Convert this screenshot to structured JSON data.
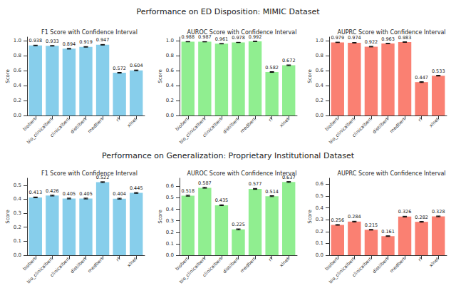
{
  "titles": [
    "Performance on ED Disposition: MIMIC Dataset",
    "Performance on Generalization: Proprietary Institutional Dataset"
  ],
  "chart_data": [
    {
      "type": "bar",
      "title": "F1 Score with Confidence Interval",
      "y_label": "Score",
      "categories": [
        "biobert",
        "bio_clinicalbert",
        "clinicalbert",
        "distilbert",
        "medbert",
        "rf",
        "xlnet"
      ],
      "values": [
        0.938,
        0.933,
        0.894,
        0.919,
        0.947,
        0.572,
        0.604
      ],
      "errors": [
        0.004,
        0.004,
        0.005,
        0.004,
        0.004,
        0.005,
        0.005
      ],
      "color": "#87ceeb",
      "ylim": [
        0,
        1.05
      ],
      "yticks": [
        {
          "value": 0,
          "label": "0.0"
        },
        0.2,
        0.4,
        0.6,
        0.8,
        {
          "value": 1,
          "label": "1.0"
        }
      ],
      "data_labels": true,
      "grid": false
    },
    {
      "type": "bar",
      "title": "AUROC Score with Confidence Interval",
      "y_label": "Score",
      "categories": [
        "biobert",
        "bio_clinicalbert",
        "clinicalbert",
        "distilbert",
        "medbert",
        "rf",
        "xlnet"
      ],
      "values": [
        0.988,
        0.987,
        0.961,
        0.978,
        0.992,
        0.582,
        0.672
      ],
      "errors": [
        0.002,
        0.002,
        0.003,
        0.002,
        0.002,
        0.005,
        0.005
      ],
      "color": "#90ee90",
      "ylim": [
        0,
        1.05
      ],
      "yticks": [
        {
          "value": 0,
          "label": "0.0"
        },
        0.2,
        0.4,
        0.6,
        0.8,
        {
          "value": 1,
          "label": "1.0"
        }
      ],
      "data_labels": true,
      "grid": false
    },
    {
      "type": "bar",
      "title": "AUPRC Score with Confidence Interval",
      "y_label": "Score",
      "categories": [
        "biobert",
        "bio_clinicalbert",
        "clinicalbert",
        "distilbert",
        "medbert",
        "rf",
        "xlnet"
      ],
      "values": [
        0.979,
        0.974,
        0.922,
        0.963,
        0.983,
        0.447,
        0.533
      ],
      "errors": [
        0.003,
        0.003,
        0.004,
        0.003,
        0.003,
        0.005,
        0.005
      ],
      "color": "#fa8072",
      "ylim": [
        0,
        1.05
      ],
      "yticks": [
        {
          "value": 0,
          "label": "0.0"
        },
        0.2,
        0.4,
        0.6,
        0.8,
        {
          "value": 1,
          "label": "1.0"
        }
      ],
      "data_labels": true,
      "grid": false
    },
    {
      "type": "bar",
      "title": "F1 Score with Confidence Interval",
      "y_label": "Score",
      "categories": [
        "biobert",
        "bio_clinicalbert",
        "clinicalbert",
        "distilbert",
        "medbert",
        "rf",
        "xlnet"
      ],
      "values": [
        0.413,
        0.426,
        0.405,
        0.405,
        0.522,
        0.404,
        0.445
      ],
      "errors": [
        0.003,
        0.003,
        0.003,
        0.003,
        0.003,
        0.003,
        0.003
      ],
      "color": "#87ceeb",
      "ylim": [
        0,
        0.55
      ],
      "yticks": [
        {
          "value": 0,
          "label": "0.0"
        },
        0.1,
        0.2,
        0.3,
        0.4,
        0.5
      ],
      "data_labels": true,
      "grid": false
    },
    {
      "type": "bar",
      "title": "AUROC Score with Confidence Interval",
      "y_label": "Score",
      "categories": [
        "biobert",
        "bio_clinicalbert",
        "clinicalbert",
        "distilbert",
        "medbert",
        "rf",
        "xlnet"
      ],
      "values": [
        0.518,
        0.587,
        0.435,
        0.225,
        0.577,
        0.514,
        0.637
      ],
      "errors": [
        0.004,
        0.004,
        0.004,
        0.004,
        0.004,
        0.004,
        0.004
      ],
      "color": "#90ee90",
      "ylim": [
        0,
        0.67
      ],
      "yticks": [
        {
          "value": 0,
          "label": "0.0"
        },
        0.1,
        0.2,
        0.3,
        0.4,
        0.5,
        0.6
      ],
      "data_labels": true,
      "grid": false
    },
    {
      "type": "bar",
      "title": "AUPRC Score with Confidence Interval",
      "y_label": "Score",
      "categories": [
        "biobert",
        "bio_clinicalbert",
        "clinicalbert",
        "distilbert",
        "medbert",
        "rf",
        "xlnet"
      ],
      "values": [
        0.256,
        0.284,
        0.215,
        0.161,
        0.326,
        0.282,
        0.328
      ],
      "errors": [
        0.003,
        0.003,
        0.003,
        0.003,
        0.003,
        0.003,
        0.003
      ],
      "color": "#fa8072",
      "ylim": [
        0,
        0.65
      ],
      "yticks": [
        {
          "value": 0,
          "label": "0.0"
        },
        0.1,
        0.2,
        0.3,
        0.4,
        0.5,
        0.6
      ],
      "data_labels": true,
      "grid": false
    }
  ]
}
